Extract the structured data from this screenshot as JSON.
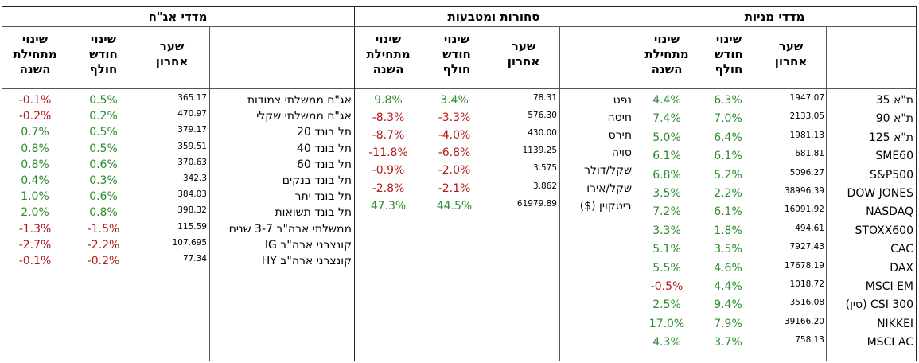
{
  "colors": {
    "positive": "#2e8b2e",
    "negative": "#b31b1b",
    "text": "#000000",
    "grid": "#555555"
  },
  "sections": {
    "bonds": {
      "title": "מדדי אג\"ח",
      "headers": {
        "ytd": "שינוי\nמתחילת\nהשנה",
        "month": "שינוי\nחודש\nחולף",
        "last": "שער\nאחרון"
      },
      "rows": [
        {
          "name": "אג\"ח ממשלתי צמודות",
          "last": "365.17",
          "month": "0.5%",
          "ytd": "-0.1%"
        },
        {
          "name": "אג\"ח ממשלתי שקלי",
          "last": "470.97",
          "month": "0.2%",
          "ytd": "-0.2%"
        },
        {
          "name": "תל בונד 20",
          "last": "379.17",
          "month": "0.5%",
          "ytd": "0.7%"
        },
        {
          "name": "תל בונד 40",
          "last": "359.51",
          "month": "0.5%",
          "ytd": "0.8%"
        },
        {
          "name": "תל בונד 60",
          "last": "370.63",
          "month": "0.6%",
          "ytd": "0.8%"
        },
        {
          "name": "תל בונד בנקים",
          "last": "342.3",
          "month": "0.3%",
          "ytd": "0.4%"
        },
        {
          "name": "תל בונד יתר",
          "last": "384.03",
          "month": "0.6%",
          "ytd": "1.0%"
        },
        {
          "name": "תל בונד תשואות",
          "last": "398.32",
          "month": "0.8%",
          "ytd": "2.0%"
        },
        {
          "name": "ממשלתי ארה\"ב 3-7 שנים",
          "last": "115.59",
          "month": "-1.5%",
          "ytd": "-1.3%"
        },
        {
          "name": "קונצרני ארה\"ב IG",
          "last": "107.695",
          "month": "-2.2%",
          "ytd": "-2.7%"
        },
        {
          "name": "קונצרני ארה\"ב HY",
          "last": "77.34",
          "month": "-0.2%",
          "ytd": "-0.1%"
        }
      ]
    },
    "commodities": {
      "title": "סחורות ומטבעות",
      "headers": {
        "ytd": "שינוי\nמתחילת\nהשנה",
        "month": "שינוי\nחודש\nחולף",
        "last": "שער\nאחרון"
      },
      "rows": [
        {
          "name": "נפט",
          "last": "78.31",
          "month": "3.4%",
          "ytd": "9.8%"
        },
        {
          "name": "חיטה",
          "last": "576.30",
          "month": "-3.3%",
          "ytd": "-8.3%"
        },
        {
          "name": "תירס",
          "last": "430.00",
          "month": "-4.0%",
          "ytd": "-8.7%"
        },
        {
          "name": "סויה",
          "last": "1139.25",
          "month": "-6.8%",
          "ytd": "-11.8%"
        },
        {
          "name": "שקל/דולר",
          "last": "3.575",
          "month": "-2.0%",
          "ytd": "-0.9%"
        },
        {
          "name": "שקל/אירו",
          "last": "3.862",
          "month": "-2.1%",
          "ytd": "-2.8%"
        },
        {
          "name": "ביטקוין ($)",
          "last": "61979.89",
          "month": "44.5%",
          "ytd": "47.3%"
        }
      ]
    },
    "stocks": {
      "title": "מדדי מניות",
      "headers": {
        "ytd": "שינוי\nמתחילת\nהשנה",
        "month": "שינוי\nחודש\nחולף",
        "last": "שער\nאחרון"
      },
      "rows": [
        {
          "name": "ת\"א 35",
          "last": "1947.07",
          "month": "6.3%",
          "ytd": "4.4%"
        },
        {
          "name": "ת\"א 90",
          "last": "2133.05",
          "month": "7.0%",
          "ytd": "7.4%"
        },
        {
          "name": "ת\"א 125",
          "last": "1981.13",
          "month": "6.4%",
          "ytd": "5.0%"
        },
        {
          "name": "SME60",
          "last": "681.81",
          "month": "6.1%",
          "ytd": "6.1%"
        },
        {
          "name": "S&P500",
          "last": "5096.27",
          "month": "5.2%",
          "ytd": "6.8%"
        },
        {
          "name": "DOW JONES",
          "last": "38996.39",
          "month": "2.2%",
          "ytd": "3.5%"
        },
        {
          "name": "NASDAQ",
          "last": "16091.92",
          "month": "6.1%",
          "ytd": "7.2%"
        },
        {
          "name": "STOXX600",
          "last": "494.61",
          "month": "1.8%",
          "ytd": "3.3%"
        },
        {
          "name": "CAC",
          "last": "7927.43",
          "month": "3.5%",
          "ytd": "5.1%"
        },
        {
          "name": "DAX",
          "last": "17678.19",
          "month": "4.6%",
          "ytd": "5.5%"
        },
        {
          "name": "MSCI EM",
          "last": "1018.72",
          "month": "4.4%",
          "ytd": "-0.5%"
        },
        {
          "name": "CSI 300 (סין)",
          "last": "3516.08",
          "month": "9.4%",
          "ytd": "2.5%"
        },
        {
          "name": "NIKKEI",
          "last": "39166.20",
          "month": "7.9%",
          "ytd": "17.0%"
        },
        {
          "name": "MSCI AC",
          "last": "758.13",
          "month": "3.7%",
          "ytd": "4.3%"
        }
      ]
    }
  }
}
